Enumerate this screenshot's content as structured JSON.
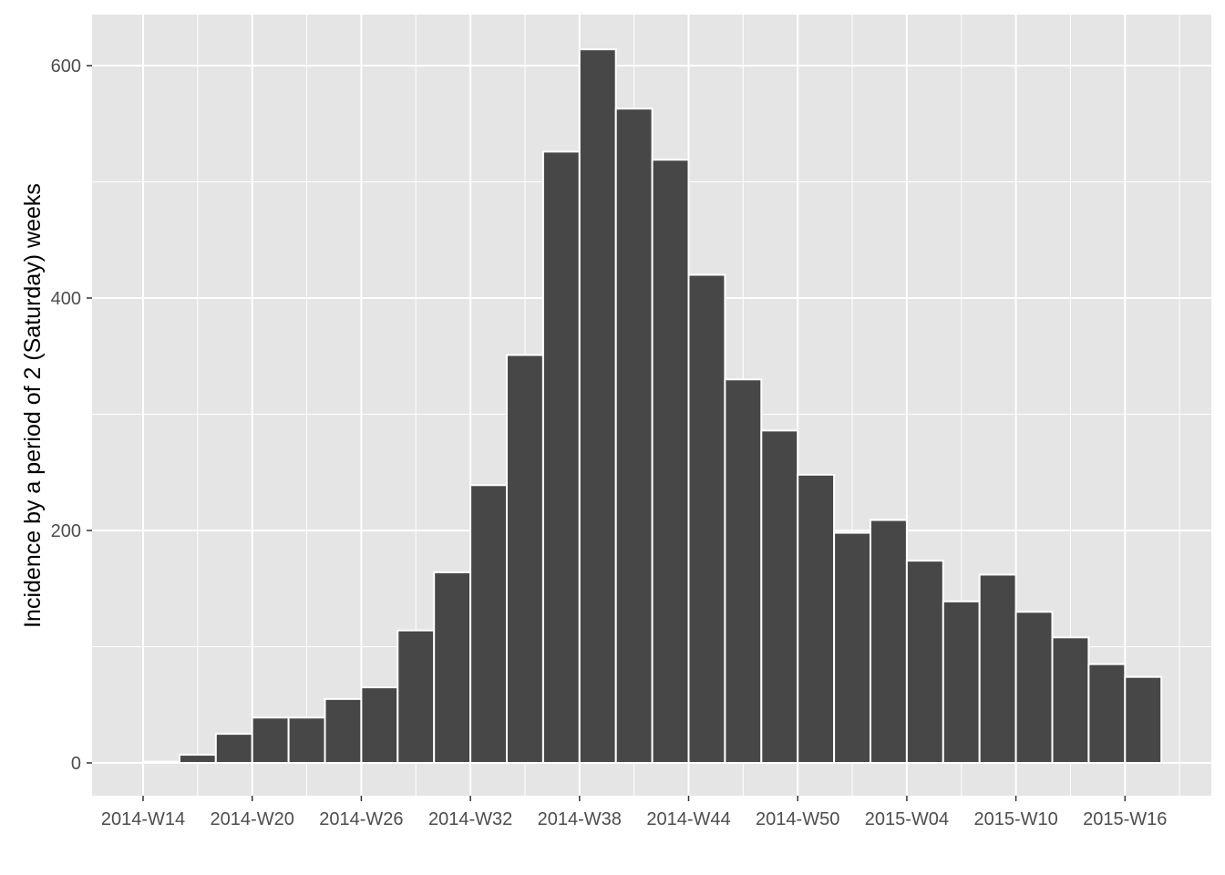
{
  "chart_data": {
    "type": "bar",
    "title": "",
    "xlabel": "",
    "ylabel": "Incidence by a period of 2 (Saturday) weeks",
    "x_ticks": [
      "2014-W14",
      "2014-W20",
      "2014-W26",
      "2014-W32",
      "2014-W38",
      "2014-W44",
      "2014-W50",
      "2015-W04",
      "2015-W10",
      "2015-W16"
    ],
    "y_ticks": [
      0,
      200,
      400,
      600
    ],
    "ylim": [
      -30,
      645
    ],
    "bin_width_weeks": 2,
    "grid": true,
    "categories": [
      "2014-W14",
      "2014-W16",
      "2014-W18",
      "2014-W20",
      "2014-W22",
      "2014-W24",
      "2014-W26",
      "2014-W28",
      "2014-W30",
      "2014-W32",
      "2014-W34",
      "2014-W36",
      "2014-W38",
      "2014-W40",
      "2014-W42",
      "2014-W44",
      "2014-W46",
      "2014-W48",
      "2014-W50",
      "2014-W52",
      "2015-W02",
      "2015-W04",
      "2015-W06",
      "2015-W08",
      "2015-W10",
      "2015-W12",
      "2015-W14",
      "2015-W16"
    ],
    "values": [
      1,
      7,
      25,
      39,
      39,
      55,
      65,
      114,
      164,
      239,
      351,
      526,
      614,
      563,
      519,
      420,
      330,
      286,
      248,
      198,
      209,
      174,
      139,
      162,
      130,
      108,
      85,
      74
    ],
    "colors": {
      "bar_fill": "#474747",
      "bar_stroke": "#ffffff",
      "panel": "#e5e5e5",
      "grid": "#ffffff"
    }
  }
}
